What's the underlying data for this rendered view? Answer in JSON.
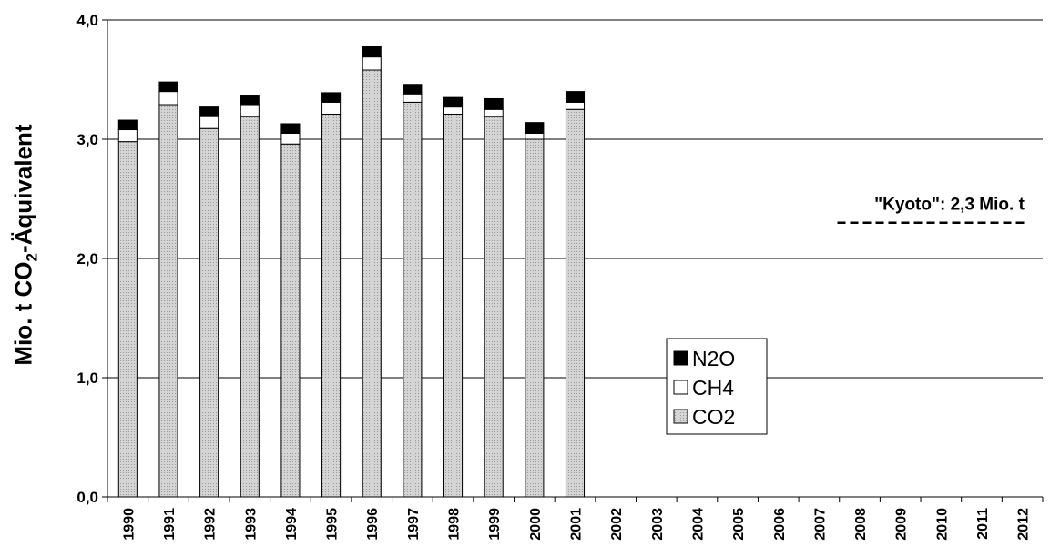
{
  "chart_data": {
    "type": "bar",
    "stacked": true,
    "categories": [
      "1990",
      "1991",
      "1992",
      "1993",
      "1994",
      "1995",
      "1996",
      "1997",
      "1998",
      "1999",
      "2000",
      "2001",
      "2002",
      "2003",
      "2004",
      "2005",
      "2006",
      "2007",
      "2008",
      "2009",
      "2010",
      "2011",
      "2012"
    ],
    "series": [
      {
        "name": "CO2",
        "color": "#d4d4d4",
        "pattern": "dotted",
        "values": [
          2.98,
          3.29,
          3.09,
          3.19,
          2.96,
          3.21,
          3.58,
          3.31,
          3.21,
          3.19,
          3.0,
          3.25,
          null,
          null,
          null,
          null,
          null,
          null,
          null,
          null,
          null,
          null,
          null
        ]
      },
      {
        "name": "CH4",
        "color": "#ffffff",
        "values": [
          0.1,
          0.11,
          0.1,
          0.1,
          0.09,
          0.1,
          0.11,
          0.07,
          0.06,
          0.06,
          0.05,
          0.06,
          null,
          null,
          null,
          null,
          null,
          null,
          null,
          null,
          null,
          null,
          null
        ]
      },
      {
        "name": "N2O",
        "color": "#000000",
        "values": [
          0.08,
          0.08,
          0.08,
          0.08,
          0.08,
          0.08,
          0.09,
          0.08,
          0.08,
          0.09,
          0.09,
          0.09,
          null,
          null,
          null,
          null,
          null,
          null,
          null,
          null,
          null,
          null,
          null
        ]
      }
    ],
    "ylabel_main": "Mio. t CO",
    "ylabel_sub": "2",
    "ylabel_tail": "-Äquivalent",
    "ylim": [
      0,
      4.0
    ],
    "yticks": [
      0,
      1,
      2,
      3,
      4
    ],
    "ytick_labels": [
      "0,0",
      "1,0",
      "2,0",
      "3,0",
      "4,0"
    ],
    "grid": true,
    "legend_position": "center-right",
    "legend_order": [
      "N2O",
      "CH4",
      "CO2"
    ],
    "reference_line": {
      "label": "\"Kyoto\": 2,3 Mio. t",
      "value": 2.3,
      "x_start": "2008",
      "x_end": "2012",
      "style": "dashed"
    }
  }
}
